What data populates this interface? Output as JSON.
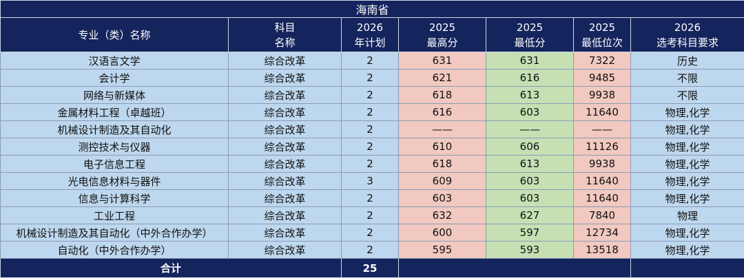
{
  "title": "海南省",
  "table": {
    "header": [
      [
        "专业（类）名称"
      ],
      [
        "科目",
        "名称"
      ],
      [
        "2026",
        "年计划"
      ],
      [
        "2025",
        "最高分"
      ],
      [
        "2025",
        "最低分"
      ],
      [
        "2025",
        "最低位次"
      ],
      [
        "2026",
        "选考科目要求"
      ]
    ],
    "rows": [
      [
        "汉语言文学",
        "综合改革",
        2,
        631,
        631,
        7322,
        "历史"
      ],
      [
        "会计学",
        "综合改革",
        2,
        621,
        616,
        9485,
        "不限"
      ],
      [
        "网络与新媒体",
        "综合改革",
        2,
        618,
        613,
        9938,
        "不限"
      ],
      [
        "金属材料工程（卓越班）",
        "综合改革",
        2,
        616,
        603,
        11640,
        "物理,化学"
      ],
      [
        "机械设计制造及其自动化",
        "综合改革",
        2,
        "——",
        "——",
        "——",
        "物理,化学"
      ],
      [
        "测控技术与仪器",
        "综合改革",
        2,
        610,
        606,
        11126,
        "物理,化学"
      ],
      [
        "电子信息工程",
        "综合改革",
        2,
        618,
        613,
        9938,
        "物理,化学"
      ],
      [
        "光电信息材料与器件",
        "综合改革",
        3,
        609,
        603,
        11640,
        "物理,化学"
      ],
      [
        "信息与计算科学",
        "综合改革",
        2,
        603,
        603,
        11640,
        "物理,化学"
      ],
      [
        "工业工程",
        "综合改革",
        2,
        632,
        627,
        7840,
        "物理"
      ],
      [
        "机械设计制造及其自动化（中外合作办学）",
        "综合改革",
        2,
        600,
        597,
        12734,
        "物理,化学"
      ],
      [
        "自动化（中外合作办学）",
        "综合改革",
        2,
        595,
        593,
        13518,
        "物理,化学"
      ]
    ],
    "total": {
      "label": "合计",
      "value": 25
    }
  }
}
